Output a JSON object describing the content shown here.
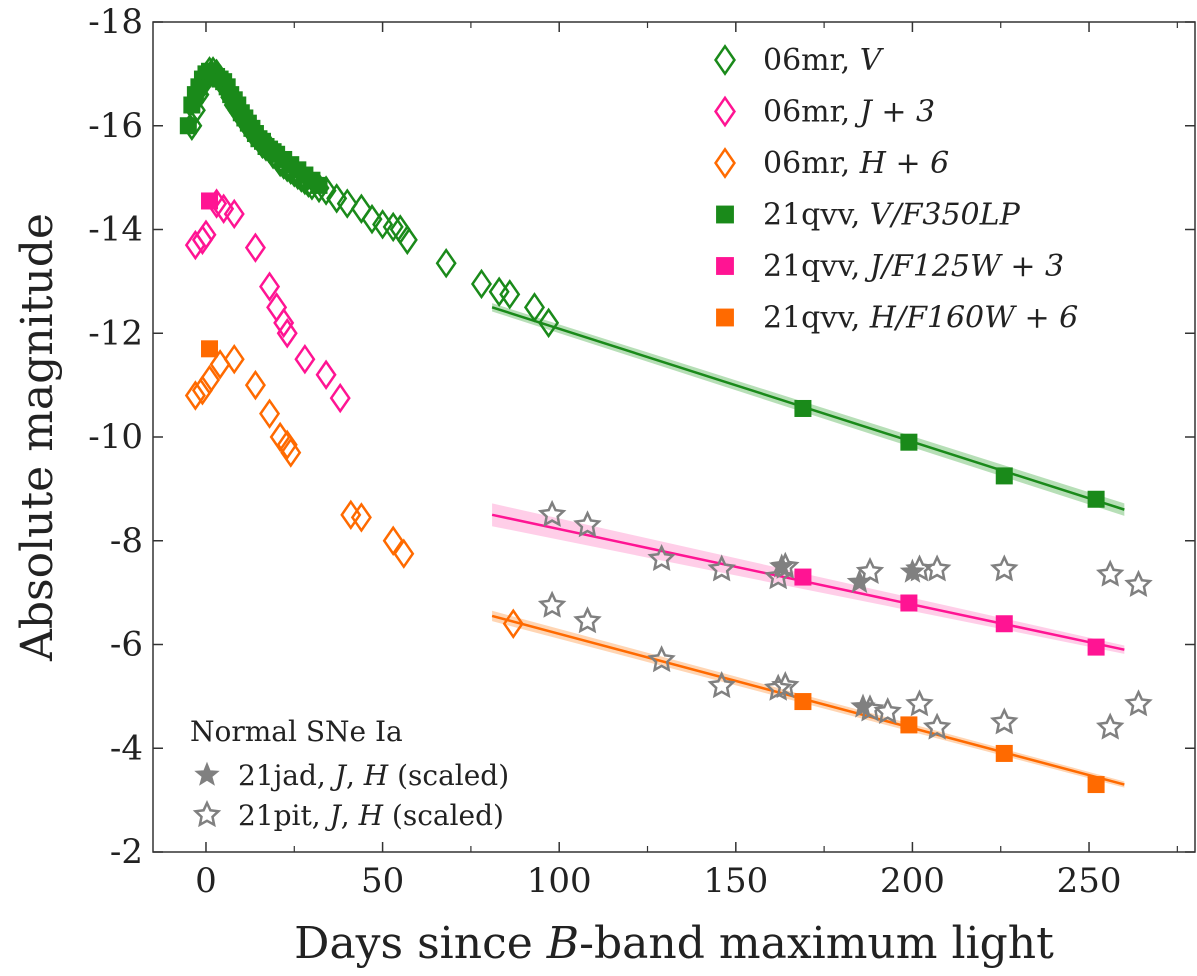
{
  "colors": {
    "green": "#1a8a1a",
    "magenta": "#ff1493",
    "orange": "#ff6a00",
    "gray": "#808080",
    "band_green": "#9fd49f",
    "band_magenta": "#ffbde0",
    "band_orange": "#ffc79a"
  },
  "chart_data": {
    "type": "scatter",
    "xlabel": "Days since B-band maximum light",
    "ylabel": "Absolute magnitude",
    "xlim": [
      -15,
      280
    ],
    "ylim": [
      -18,
      -2
    ],
    "y_inverted": true,
    "x_ticks": [
      0,
      50,
      100,
      150,
      200,
      250
    ],
    "y_ticks": [
      -18,
      -16,
      -14,
      -12,
      -10,
      -8,
      -6,
      -4,
      -2
    ],
    "x_tick_labels": [
      "0",
      "50",
      "100",
      "150",
      "200",
      "250"
    ],
    "y_tick_labels": [
      "-18",
      "-16",
      "-14",
      "-12",
      "-10",
      "-8",
      "-6",
      "-4",
      "-2"
    ],
    "legend_position": "top-right",
    "grid": false,
    "series": [
      {
        "name": "06mr, V",
        "label_plain": "06mr, ",
        "label_italic": "V",
        "marker": "diamond-open",
        "color": "green",
        "x": [
          -4,
          -3,
          -2,
          -1,
          0,
          1,
          2,
          3,
          4,
          5,
          6,
          7,
          8,
          9,
          10,
          11,
          12,
          13,
          14,
          15,
          16,
          17,
          18,
          19,
          20,
          21,
          22,
          23,
          24,
          25,
          26,
          27,
          28,
          29,
          30,
          32,
          34,
          37,
          40,
          44,
          47,
          50,
          53,
          55,
          57,
          68,
          78,
          83,
          86,
          93,
          97
        ],
        "y": [
          -16.0,
          -16.3,
          -16.6,
          -16.8,
          -16.95,
          -17.05,
          -17.05,
          -17.0,
          -16.9,
          -16.8,
          -16.7,
          -16.55,
          -16.4,
          -16.3,
          -16.2,
          -16.1,
          -16.0,
          -15.9,
          -15.85,
          -15.75,
          -15.65,
          -15.6,
          -15.55,
          -15.45,
          -15.4,
          -15.3,
          -15.25,
          -15.2,
          -15.15,
          -15.1,
          -15.05,
          -15.0,
          -14.95,
          -14.9,
          -14.85,
          -14.8,
          -14.75,
          -14.6,
          -14.5,
          -14.4,
          -14.2,
          -14.1,
          -14.05,
          -14.0,
          -13.8,
          -13.35,
          -12.95,
          -12.8,
          -12.75,
          -12.5,
          -12.2
        ]
      },
      {
        "name": "06mr, J + 3",
        "label_plain": "06mr, ",
        "label_italic": "J + 3",
        "marker": "diamond-open",
        "color": "magenta",
        "x": [
          -3,
          -1,
          0,
          3,
          5,
          8,
          14,
          18,
          20,
          22,
          23,
          28,
          34,
          38
        ],
        "y": [
          -13.7,
          -13.8,
          -13.9,
          -14.5,
          -14.4,
          -14.3,
          -13.65,
          -12.9,
          -12.5,
          -12.2,
          -12.0,
          -11.5,
          -11.2,
          -10.75
        ]
      },
      {
        "name": "06mr, H + 6",
        "label_plain": "06mr, ",
        "label_italic": "H + 6",
        "marker": "diamond-open",
        "color": "orange",
        "x": [
          -3,
          -1,
          1,
          4,
          8,
          14,
          18,
          21,
          23,
          24,
          41,
          44,
          53,
          56,
          87
        ],
        "y": [
          -10.8,
          -10.9,
          -11.1,
          -11.4,
          -11.5,
          -11.0,
          -10.45,
          -10.0,
          -9.85,
          -9.7,
          -8.5,
          -8.45,
          -8.0,
          -7.75,
          -6.4
        ]
      },
      {
        "name": "21qvv, V/F350LP",
        "label_plain": "21qvv, ",
        "label_italic": "V/F350LP",
        "marker": "square-filled",
        "color": "green",
        "x": [
          -5,
          -4,
          -3,
          -2,
          -1,
          0,
          1,
          2,
          3,
          4,
          5,
          6,
          7,
          8,
          9,
          10,
          11,
          12,
          13,
          14,
          15,
          16,
          17,
          18,
          19,
          20,
          22,
          24,
          26,
          28,
          30,
          32,
          169,
          199,
          226,
          252
        ],
        "y": [
          -16.0,
          -16.4,
          -16.6,
          -16.75,
          -16.9,
          -17.0,
          -17.05,
          -17.0,
          -16.95,
          -16.9,
          -16.85,
          -16.75,
          -16.6,
          -16.5,
          -16.4,
          -16.25,
          -16.15,
          -16.05,
          -15.95,
          -15.85,
          -15.75,
          -15.7,
          -15.6,
          -15.55,
          -15.5,
          -15.45,
          -15.35,
          -15.25,
          -15.15,
          -15.05,
          -14.95,
          -14.85,
          -10.55,
          -9.9,
          -9.25,
          -8.8
        ]
      },
      {
        "name": "21qvv, J/F125W + 3",
        "label_plain": "21qvv, ",
        "label_italic": "J/F125W + 3",
        "marker": "square-filled",
        "color": "magenta",
        "x": [
          1,
          169,
          199,
          226,
          252
        ],
        "y": [
          -14.55,
          -7.3,
          -6.8,
          -6.4,
          -5.95
        ]
      },
      {
        "name": "21qvv, H/F160W + 6",
        "label_plain": "21qvv, ",
        "label_italic": "H/F160W + 6",
        "marker": "square-filled",
        "color": "orange",
        "x": [
          1,
          169,
          199,
          226,
          252
        ],
        "y": [
          -11.7,
          -4.9,
          -4.45,
          -3.9,
          -3.3
        ]
      },
      {
        "name": "21jad, J, H (scaled)",
        "marker": "star-filled",
        "color": "gray",
        "x": [
          163,
          185,
          186,
          200
        ],
        "y": [
          -7.5,
          -7.2,
          -4.8,
          -7.4
        ]
      },
      {
        "name": "21pit, J, H (scaled)",
        "marker": "star-open",
        "color": "gray",
        "x": [
          98,
          108,
          129,
          146,
          162,
          164,
          188,
          202,
          207,
          226,
          256,
          264,
          98,
          108,
          129,
          146,
          162,
          164,
          188,
          193,
          202,
          207,
          226,
          256,
          264
        ],
        "y": [
          -8.5,
          -8.3,
          -7.65,
          -7.45,
          -7.3,
          -7.5,
          -7.4,
          -7.45,
          -7.45,
          -7.45,
          -7.35,
          -7.15,
          -6.75,
          -6.45,
          -5.7,
          -5.2,
          -5.15,
          -5.2,
          -4.75,
          -4.7,
          -4.85,
          -4.4,
          -4.5,
          -4.4,
          -4.85
        ]
      }
    ],
    "fit_lines": [
      {
        "color": "green",
        "band": "band_green",
        "x": [
          81,
          260
        ],
        "y": [
          -12.5,
          -8.6
        ],
        "band_halfwidth": [
          0.08,
          0.12
        ]
      },
      {
        "color": "magenta",
        "band": "band_magenta",
        "x": [
          81,
          260
        ],
        "y": [
          -8.5,
          -5.9
        ],
        "band_halfwidth": [
          0.22,
          0.08
        ]
      },
      {
        "color": "orange",
        "band": "band_orange",
        "x": [
          81,
          260
        ],
        "y": [
          -6.55,
          -3.3
        ],
        "band_halfwidth": [
          0.1,
          0.06
        ]
      }
    ],
    "annotation": {
      "heading": "Normal SNe Ia",
      "lines": [
        {
          "marker": "star-filled",
          "plain": "21jad, ",
          "italic1": "J",
          "sep": ", ",
          "italic2": "H",
          "suffix": " (scaled)"
        },
        {
          "marker": "star-open",
          "plain": "21pit, ",
          "italic1": "J",
          "sep": ", ",
          "italic2": "H",
          "suffix": " (scaled)"
        }
      ],
      "position": "bottom-left"
    }
  }
}
